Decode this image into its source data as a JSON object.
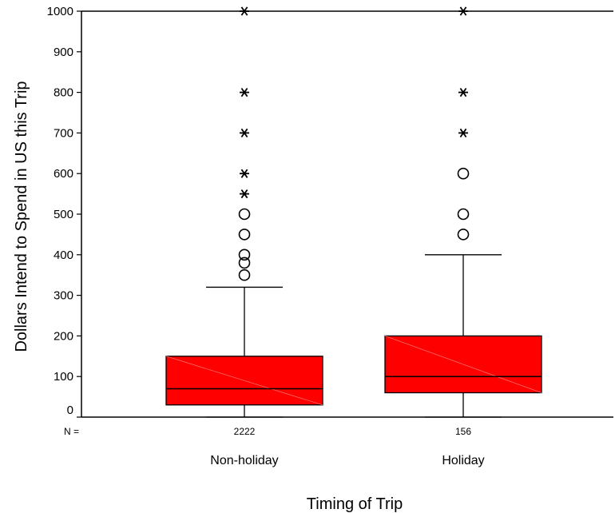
{
  "chart_data": {
    "type": "box",
    "title": "",
    "xlabel": "Timing of Trip",
    "ylabel": "Dollars Intend to Spend in US this Trip",
    "ylim": [
      0,
      1000
    ],
    "yticks": [
      0,
      100,
      200,
      300,
      400,
      500,
      600,
      700,
      800,
      900,
      1000
    ],
    "n_label": "N =",
    "grid": false,
    "box_color": "#ff0000",
    "categories": [
      "Non-holiday",
      "Holiday"
    ],
    "groups": [
      {
        "name": "Non-holiday",
        "n": "2222",
        "min": 0,
        "q1": 30,
        "median": 70,
        "q3": 150,
        "max": 320,
        "outliers": [
          350,
          380,
          400,
          450,
          500
        ],
        "extremes": [
          550,
          600,
          700,
          800,
          1000
        ]
      },
      {
        "name": "Holiday",
        "n": "156",
        "min": 0,
        "q1": 60,
        "median": 100,
        "q3": 200,
        "max": 400,
        "outliers": [
          450,
          500,
          600
        ],
        "extremes": [
          700,
          800,
          1000
        ]
      }
    ]
  }
}
